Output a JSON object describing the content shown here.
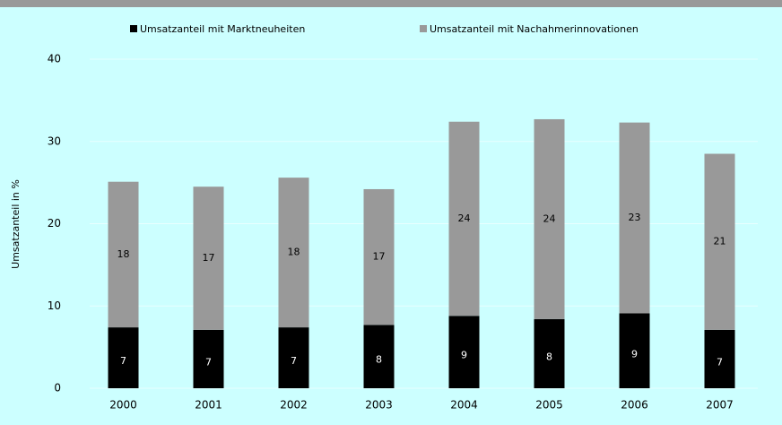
{
  "chart_data": {
    "type": "stacked-bar",
    "categories": [
      "2000",
      "2001",
      "2002",
      "2003",
      "2004",
      "2005",
      "2006",
      "2007"
    ],
    "series": [
      {
        "name": "Umsatzanteil mit Marktneuheiten",
        "color": "#000000",
        "values": [
          7.4,
          7.1,
          7.4,
          7.7,
          8.8,
          8.4,
          9.1,
          7.1
        ],
        "value_labels": [
          "7",
          "7",
          "7",
          "8",
          "9",
          "8",
          "9",
          "7"
        ]
      },
      {
        "name": "Umsatzanteil mit Nachahmerinnovationen",
        "color": "#999999",
        "values": [
          17.7,
          17.4,
          18.2,
          16.5,
          23.6,
          24.3,
          23.2,
          21.4
        ],
        "value_labels": [
          "18",
          "17",
          "18",
          "17",
          "24",
          "24",
          "23",
          "21"
        ]
      }
    ],
    "y_axis_label": "Umsatzanteil in %",
    "ylim": [
      0,
      40
    ],
    "yticks": [
      0,
      10,
      20,
      30,
      40
    ],
    "grid": true
  }
}
